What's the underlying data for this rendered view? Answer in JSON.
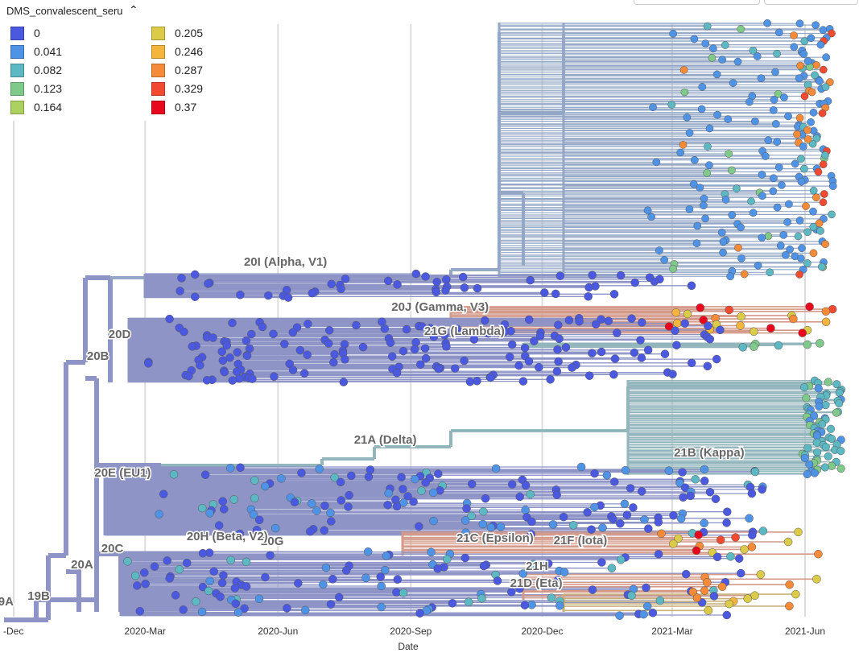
{
  "chart_data": {
    "type": "scatter",
    "subtype": "phylogenetic-tree",
    "xlabel": "Date",
    "x_ticks": [
      "-Dec",
      "2020-Mar",
      "2020-Jun",
      "2020-Sep",
      "2020-Dec",
      "2021-Mar",
      "2021-Jun"
    ],
    "x_tick_dates": [
      "2019-12-01",
      "2020-03-01",
      "2020-06-01",
      "2020-09-01",
      "2020-12-01",
      "2021-03-01",
      "2021-06-01"
    ],
    "xlim": [
      "2019-11-28",
      "2021-07-10"
    ],
    "grid": true,
    "color_by": "DMS_convalescent_serum",
    "legend": {
      "title": "DMS_convalescent_seru",
      "placement": "top-left",
      "entries": [
        {
          "label": "0",
          "color": "#4b59e0"
        },
        {
          "label": "0.041",
          "color": "#4f93e6"
        },
        {
          "label": "0.082",
          "color": "#5cb8c2"
        },
        {
          "label": "0.123",
          "color": "#7fc98a"
        },
        {
          "label": "0.164",
          "color": "#abd15f"
        },
        {
          "label": "0.205",
          "color": "#dbcb48"
        },
        {
          "label": "0.246",
          "color": "#f5b43c"
        },
        {
          "label": "0.287",
          "color": "#f58a38"
        },
        {
          "label": "0.329",
          "color": "#f24a30"
        },
        {
          "label": "0.37",
          "color": "#e8071c"
        }
      ]
    },
    "clades": [
      {
        "name": "19A",
        "date": "2019-12-01"
      },
      {
        "name": "19B",
        "date": "2019-12-26"
      },
      {
        "name": "20A",
        "date": "2020-01-25"
      },
      {
        "name": "20B",
        "date": "2020-02-05"
      },
      {
        "name": "20C",
        "date": "2020-02-15"
      },
      {
        "name": "20D",
        "date": "2020-02-20"
      },
      {
        "name": "20E (EU1)",
        "date": "2020-03-05"
      },
      {
        "name": "20G",
        "date": "2020-06-05"
      },
      {
        "name": "20H (Beta, V2)",
        "date": "2020-05-25"
      },
      {
        "name": "20I (Alpha, V1)",
        "date": "2020-07-05"
      },
      {
        "name": "20J (Gamma, V3)",
        "date": "2020-10-25"
      },
      {
        "name": "21A (Delta)",
        "date": "2020-09-05"
      },
      {
        "name": "21B (Kappa)",
        "date": "2021-04-20"
      },
      {
        "name": "21C (Epsilon)",
        "date": "2020-11-25"
      },
      {
        "name": "21D (Eta)",
        "date": "2020-12-15"
      },
      {
        "name": "21F (Iota)",
        "date": "2021-01-15"
      },
      {
        "name": "21G (Lambda)",
        "date": "2020-11-05"
      },
      {
        "name": "21H",
        "date": "2020-12-05"
      }
    ],
    "series": [
      {
        "color": "#4b59e0",
        "points_note": "20B/20D/20E basal lineages, sampled 2020-Mar to 2021-Jan"
      },
      {
        "color": "#4f93e6",
        "points_note": "20I (Alpha, V1) expansion, sampled 2020-Dec to 2021-Jun"
      },
      {
        "color": "#5cb8c2",
        "points_note": "21A (Delta)/21B (Kappa), sampled 2021-Jun"
      },
      {
        "color": "#f58a38",
        "points_note": "20J (Gamma, V3), 21C (Epsilon), 21D (Eta), 2021-Jan to 2021-Jun"
      },
      {
        "color": "#f24a30",
        "points_note": "20J (Gamma, V3) high escape, 2021-Mar to 2021-Jun"
      }
    ]
  }
}
